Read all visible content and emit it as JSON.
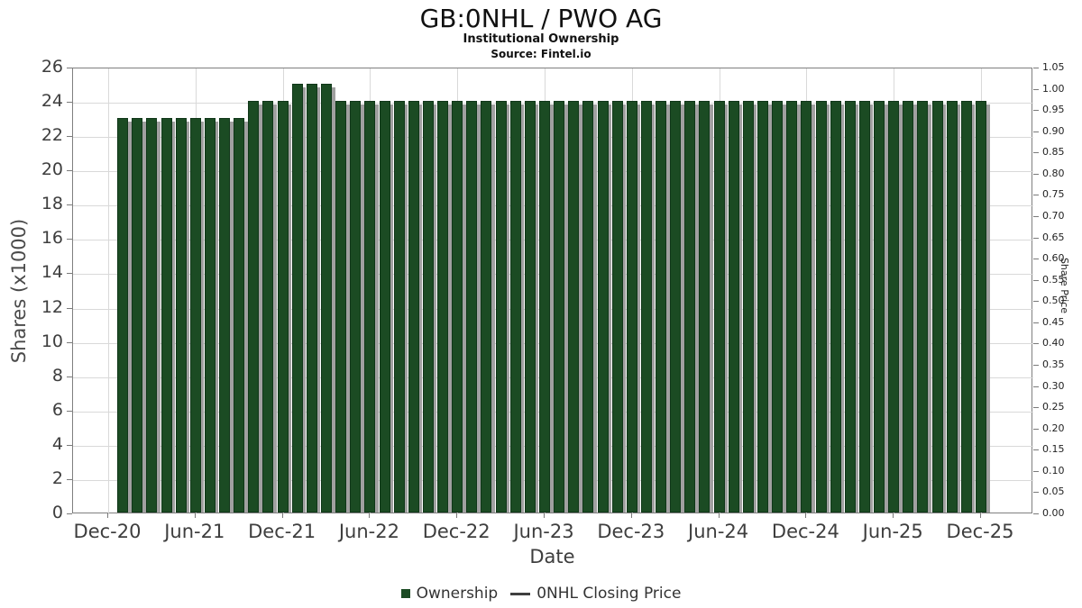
{
  "header": {
    "title": "GB:0NHL / PWO AG",
    "subtitle": "Institutional Ownership",
    "source": "Source: Fintel.io"
  },
  "legend": {
    "items": [
      {
        "label": "Ownership",
        "marker": "square",
        "color": "#1b4b23"
      },
      {
        "label": "0NHL Closing Price",
        "marker": "line",
        "color": "#3f3f3f"
      }
    ]
  },
  "theme": {
    "bar_fill": "#1b4b23",
    "bar_border": "#103719",
    "bar_shadow": "#a0a0a0",
    "grid": "#d9d9d9",
    "frame": "#7f7f7f",
    "tick": "#7a7a7a",
    "axis_text": "#3e3e3e"
  },
  "chart_data": {
    "type": "bar",
    "title": "GB:0NHL / PWO AG",
    "subtitle": "Institutional Ownership",
    "source": "Source: Fintel.io",
    "xlabel": "Date",
    "ylabel_left": "Shares (x1000)",
    "ylabel_right": "Share Price",
    "ylim_left": [
      0,
      26
    ],
    "ylim_right": [
      0,
      1.05
    ],
    "grid": true,
    "legend_position": "bottom",
    "xticks": [
      "Dec-20",
      "Jun-21",
      "Dec-21",
      "Jun-22",
      "Dec-22",
      "Jun-23",
      "Dec-23",
      "Jun-24",
      "Dec-24",
      "Jun-25",
      "Dec-25"
    ],
    "yticks_left": [
      0,
      2,
      4,
      6,
      8,
      10,
      12,
      14,
      16,
      18,
      20,
      22,
      24,
      26
    ],
    "yticks_right": [
      0,
      0.05,
      0.1,
      0.15,
      0.2,
      0.25,
      0.3,
      0.35,
      0.4,
      0.45,
      0.5,
      0.55,
      0.6,
      0.65,
      0.7,
      0.75,
      0.8,
      0.85,
      0.9,
      0.95,
      1.0,
      1.05
    ],
    "x": [
      "Jan-21",
      "Feb-21",
      "Mar-21",
      "Apr-21",
      "May-21",
      "Jun-21",
      "Jul-21",
      "Aug-21",
      "Sep-21",
      "Oct-21",
      "Nov-21",
      "Dec-21",
      "Jan-22",
      "Feb-22",
      "Mar-22",
      "Apr-22",
      "May-22",
      "Jun-22",
      "Jul-22",
      "Aug-22",
      "Sep-22",
      "Oct-22",
      "Nov-22",
      "Dec-22",
      "Jan-23",
      "Feb-23",
      "Mar-23",
      "Apr-23",
      "May-23",
      "Jun-23",
      "Jul-23",
      "Aug-23",
      "Sep-23",
      "Oct-23",
      "Nov-23",
      "Dec-23",
      "Jan-24",
      "Feb-24",
      "Mar-24",
      "Apr-24",
      "May-24",
      "Jun-24",
      "Jul-24",
      "Aug-24",
      "Sep-24",
      "Oct-24",
      "Nov-24",
      "Dec-24",
      "Jan-25",
      "Feb-25",
      "Mar-25",
      "Apr-25",
      "May-25",
      "Jun-25",
      "Jul-25",
      "Aug-25",
      "Sep-25",
      "Oct-25",
      "Nov-25",
      "Dec-25"
    ],
    "series": [
      {
        "name": "Ownership",
        "type": "bar",
        "color": "#1b4b23",
        "values": [
          23,
          23,
          23,
          23,
          23,
          23,
          23,
          23,
          23,
          24,
          24,
          24,
          25,
          25,
          25,
          24,
          24,
          24,
          24,
          24,
          24,
          24,
          24,
          24,
          24,
          24,
          24,
          24,
          24,
          24,
          24,
          24,
          24,
          24,
          24,
          24,
          24,
          24,
          24,
          24,
          24,
          24,
          24,
          24,
          24,
          24,
          24,
          24,
          24,
          24,
          24,
          24,
          24,
          24,
          24,
          24,
          24,
          24,
          24,
          24
        ]
      },
      {
        "name": "0NHL Closing Price",
        "type": "line",
        "color": "#3f3f3f",
        "values": []
      }
    ]
  }
}
